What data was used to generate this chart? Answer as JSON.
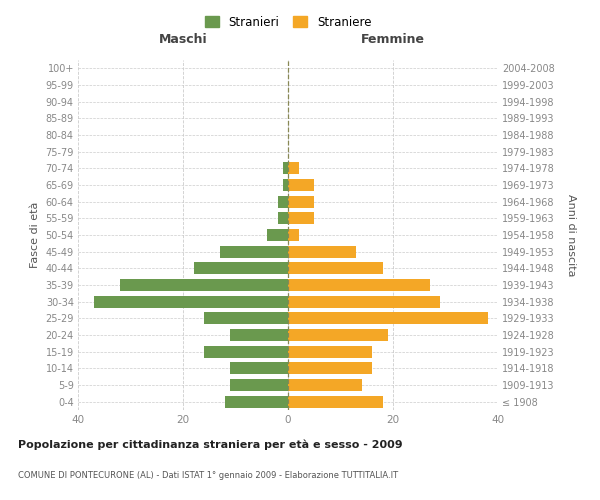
{
  "age_groups": [
    "100+",
    "95-99",
    "90-94",
    "85-89",
    "80-84",
    "75-79",
    "70-74",
    "65-69",
    "60-64",
    "55-59",
    "50-54",
    "45-49",
    "40-44",
    "35-39",
    "30-34",
    "25-29",
    "20-24",
    "15-19",
    "10-14",
    "5-9",
    "0-4"
  ],
  "birth_years": [
    "≤ 1908",
    "1909-1913",
    "1914-1918",
    "1919-1923",
    "1924-1928",
    "1929-1933",
    "1934-1938",
    "1939-1943",
    "1944-1948",
    "1949-1953",
    "1954-1958",
    "1959-1963",
    "1964-1968",
    "1969-1973",
    "1974-1978",
    "1979-1983",
    "1984-1988",
    "1989-1993",
    "1994-1998",
    "1999-2003",
    "2004-2008"
  ],
  "maschi": [
    0,
    0,
    0,
    0,
    0,
    0,
    1,
    1,
    2,
    2,
    4,
    13,
    18,
    32,
    37,
    16,
    11,
    16,
    11,
    11,
    12
  ],
  "femmine": [
    0,
    0,
    0,
    0,
    0,
    0,
    2,
    5,
    5,
    5,
    2,
    13,
    18,
    27,
    29,
    38,
    19,
    16,
    16,
    14,
    18
  ],
  "color_maschi": "#6a994e",
  "color_femmine": "#f4a726",
  "title": "Popolazione per cittadinanza straniera per età e sesso - 2009",
  "subtitle": "COMUNE DI PONTECURONE (AL) - Dati ISTAT 1° gennaio 2009 - Elaborazione TUTTITALIA.IT",
  "ylabel_left": "Fasce di età",
  "ylabel_right": "Anni di nascita",
  "xlabel_maschi": "Maschi",
  "xlabel_femmine": "Femmine",
  "legend_maschi": "Stranieri",
  "legend_femmine": "Straniere",
  "xlim": 40,
  "background_color": "#ffffff",
  "grid_color": "#cccccc",
  "axis_label_color": "#555555",
  "tick_color": "#888888"
}
